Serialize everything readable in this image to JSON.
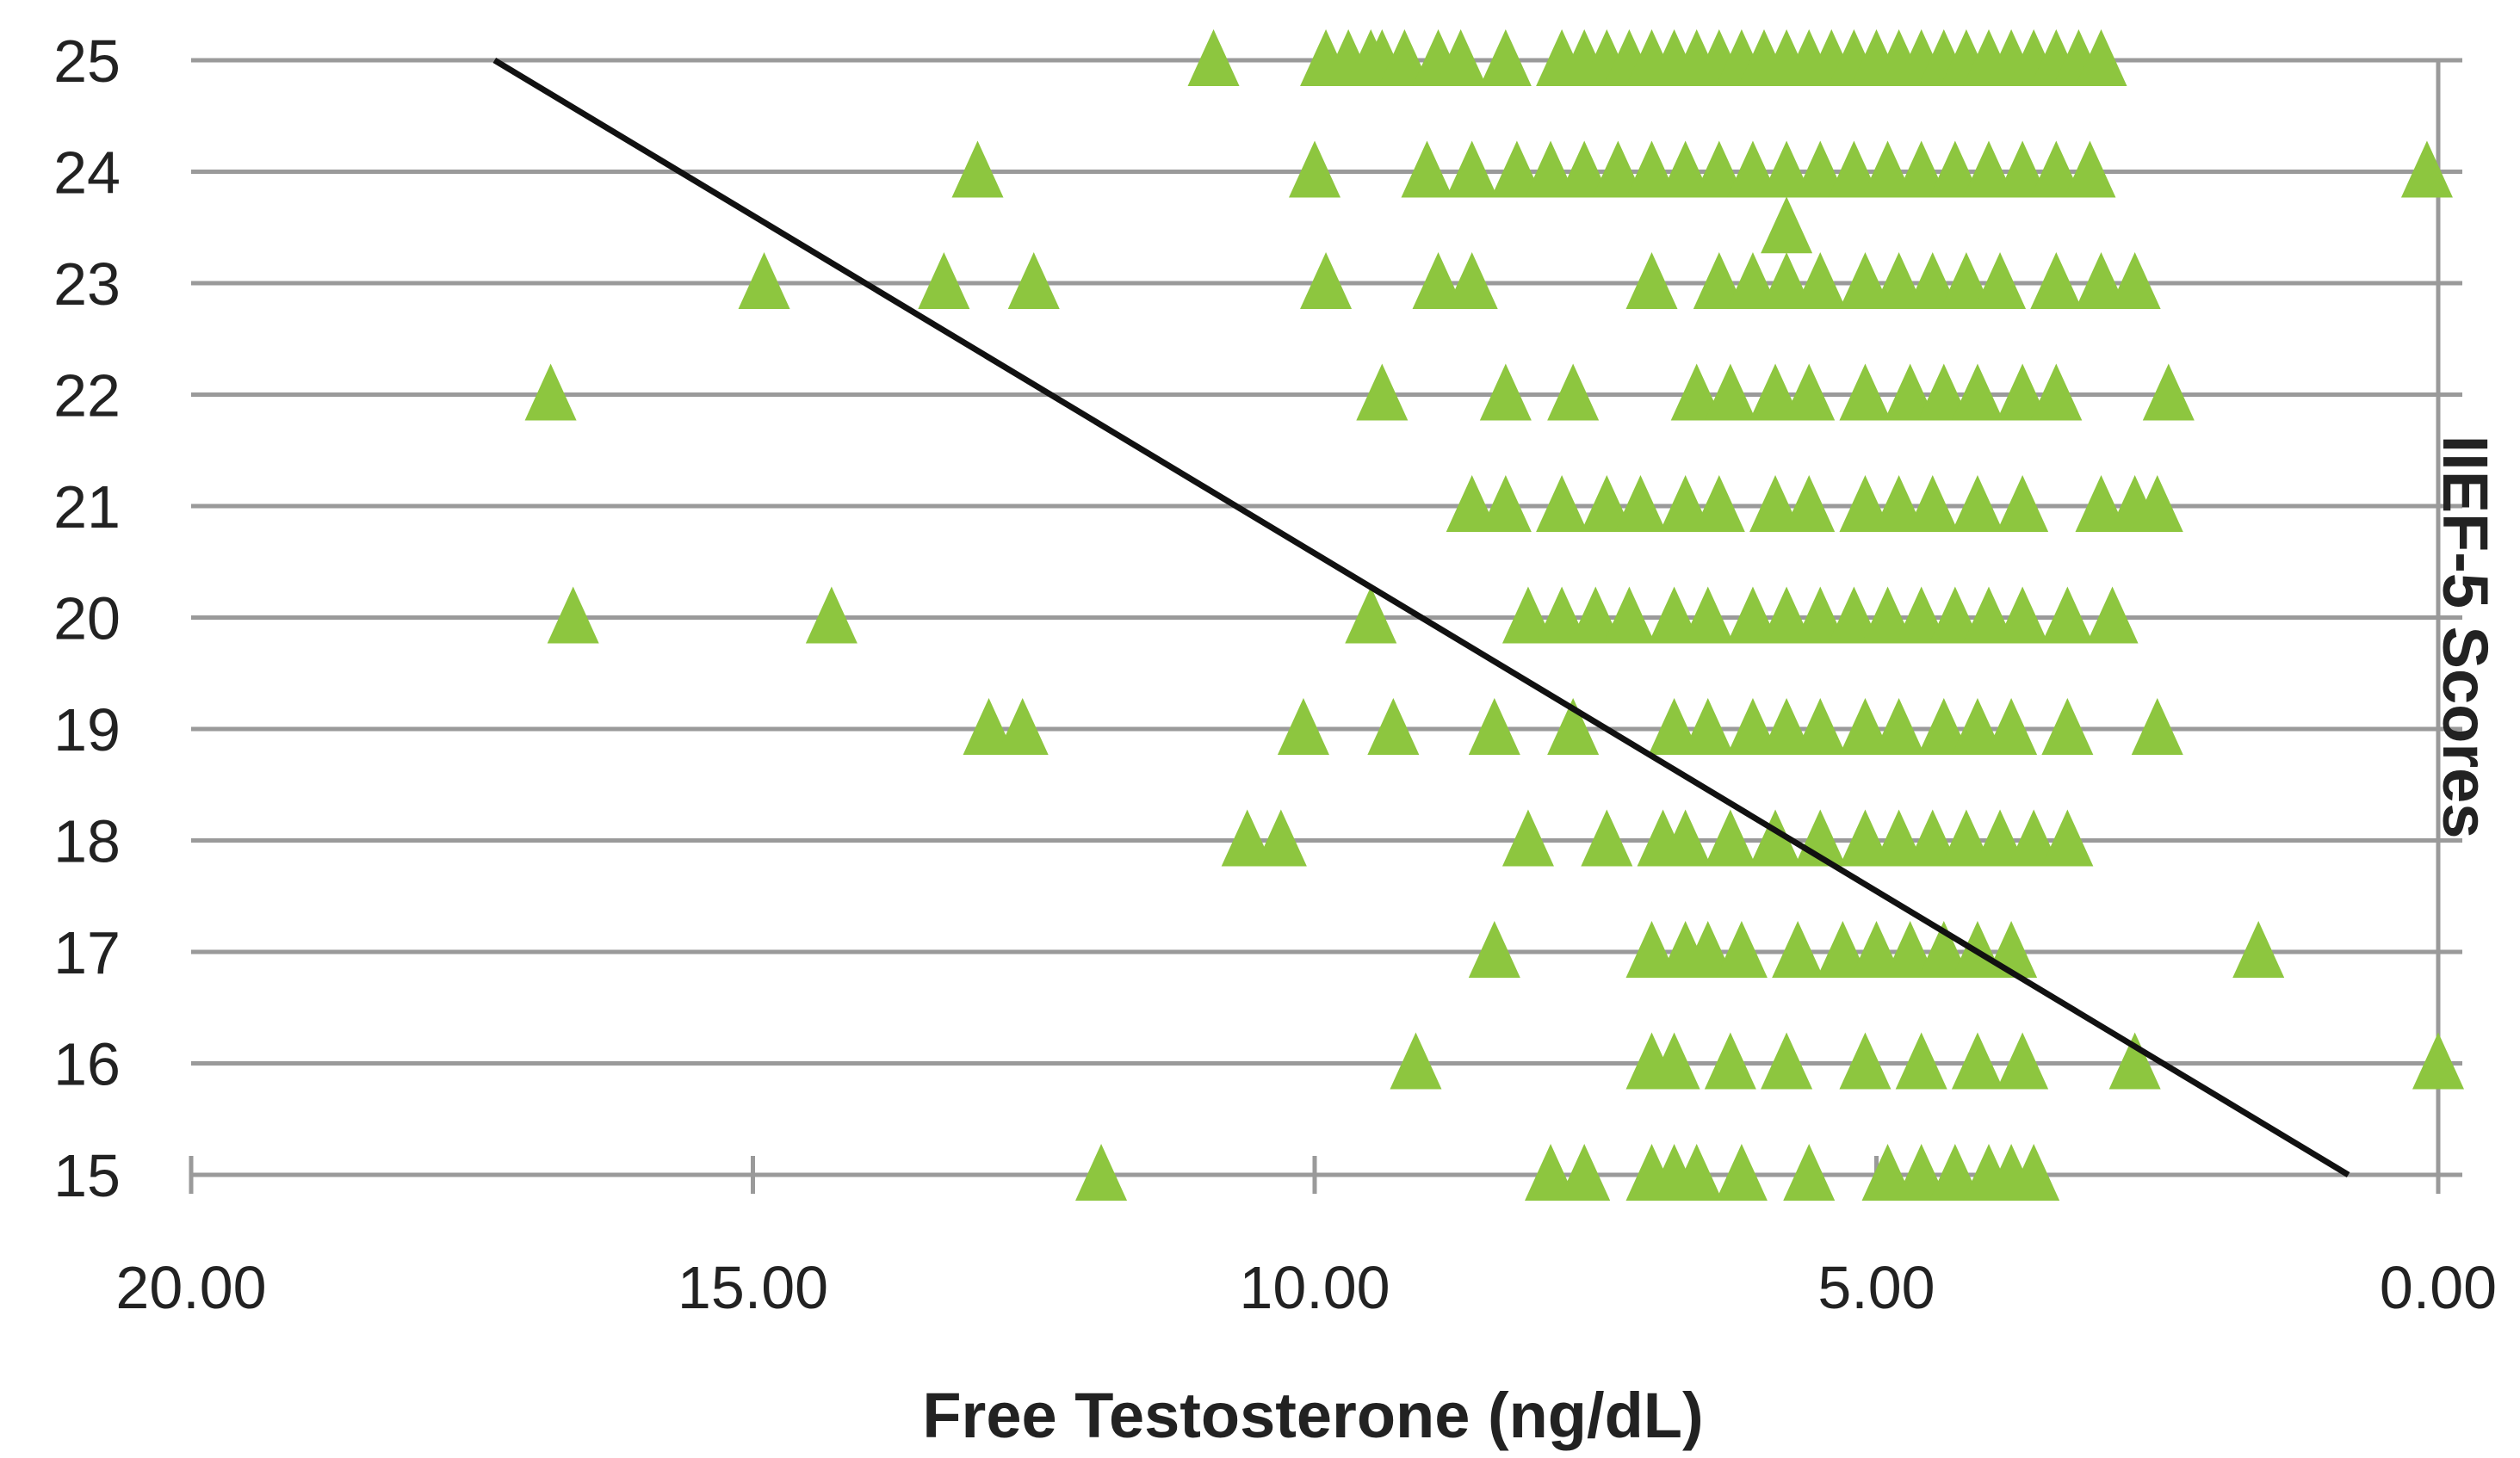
{
  "chart_data": {
    "type": "scatter",
    "title": "",
    "xlabel": "Free Testosterone (ng/dL)",
    "ylabel": "IIEF-5 Scores",
    "xlim": [
      20,
      0
    ],
    "x_reversed": true,
    "ylim": [
      15,
      25
    ],
    "x_ticks": [
      "20.00",
      "15.00",
      "10.00",
      "5.00",
      "0.00"
    ],
    "y_ticks": [
      "15",
      "16",
      "17",
      "18",
      "19",
      "20",
      "21",
      "22",
      "23",
      "24",
      "25"
    ],
    "grid": "horizontal",
    "legend": "none",
    "colors": {
      "marker": "#8DC63F",
      "trendline": "#111111",
      "grid": "#9a9a9a"
    },
    "series": [
      {
        "marker": "triangle",
        "points": [
          [
            10.9,
            25
          ],
          [
            9.9,
            25
          ],
          [
            9.7,
            25
          ],
          [
            9.5,
            25
          ],
          [
            9.4,
            25
          ],
          [
            9.2,
            25
          ],
          [
            8.9,
            25
          ],
          [
            8.7,
            25
          ],
          [
            8.3,
            25
          ],
          [
            7.8,
            25
          ],
          [
            7.6,
            25
          ],
          [
            7.4,
            25
          ],
          [
            7.2,
            25
          ],
          [
            7.0,
            25
          ],
          [
            6.8,
            25
          ],
          [
            6.6,
            25
          ],
          [
            6.4,
            25
          ],
          [
            6.2,
            25
          ],
          [
            6.0,
            25
          ],
          [
            5.8,
            25
          ],
          [
            5.6,
            25
          ],
          [
            5.4,
            25
          ],
          [
            5.2,
            25
          ],
          [
            5.0,
            25
          ],
          [
            4.8,
            25
          ],
          [
            4.6,
            25
          ],
          [
            4.4,
            25
          ],
          [
            4.2,
            25
          ],
          [
            4.0,
            25
          ],
          [
            3.8,
            25
          ],
          [
            3.6,
            25
          ],
          [
            3.4,
            25
          ],
          [
            3.2,
            25
          ],
          [
            3.0,
            25
          ],
          [
            13.0,
            24
          ],
          [
            10.0,
            24
          ],
          [
            9.0,
            24
          ],
          [
            8.6,
            24
          ],
          [
            8.2,
            24
          ],
          [
            7.9,
            24
          ],
          [
            7.6,
            24
          ],
          [
            7.3,
            24
          ],
          [
            7.0,
            24
          ],
          [
            6.7,
            24
          ],
          [
            6.4,
            24
          ],
          [
            6.1,
            24
          ],
          [
            5.8,
            24
          ],
          [
            5.5,
            24
          ],
          [
            5.2,
            24
          ],
          [
            4.9,
            24
          ],
          [
            4.6,
            24
          ],
          [
            4.3,
            24
          ],
          [
            4.0,
            24
          ],
          [
            3.7,
            24
          ],
          [
            3.4,
            24
          ],
          [
            3.1,
            24
          ],
          [
            0.1,
            24
          ],
          [
            5.8,
            23.5
          ],
          [
            14.9,
            23
          ],
          [
            13.3,
            23
          ],
          [
            12.5,
            23
          ],
          [
            9.9,
            23
          ],
          [
            8.9,
            23
          ],
          [
            8.6,
            23
          ],
          [
            7.0,
            23
          ],
          [
            6.4,
            23
          ],
          [
            6.1,
            23
          ],
          [
            5.8,
            23
          ],
          [
            5.5,
            23
          ],
          [
            5.1,
            23
          ],
          [
            4.8,
            23
          ],
          [
            4.5,
            23
          ],
          [
            4.2,
            23
          ],
          [
            3.9,
            23
          ],
          [
            3.4,
            23
          ],
          [
            3.0,
            23
          ],
          [
            2.7,
            23
          ],
          [
            16.8,
            22
          ],
          [
            9.4,
            22
          ],
          [
            8.3,
            22
          ],
          [
            7.7,
            22
          ],
          [
            6.6,
            22
          ],
          [
            6.3,
            22
          ],
          [
            5.9,
            22
          ],
          [
            5.6,
            22
          ],
          [
            5.1,
            22
          ],
          [
            4.7,
            22
          ],
          [
            4.4,
            22
          ],
          [
            4.1,
            22
          ],
          [
            3.7,
            22
          ],
          [
            3.4,
            22
          ],
          [
            2.4,
            22
          ],
          [
            8.6,
            21
          ],
          [
            8.3,
            21
          ],
          [
            7.8,
            21
          ],
          [
            7.4,
            21
          ],
          [
            7.1,
            21
          ],
          [
            6.7,
            21
          ],
          [
            6.4,
            21
          ],
          [
            5.9,
            21
          ],
          [
            5.6,
            21
          ],
          [
            5.1,
            21
          ],
          [
            4.8,
            21
          ],
          [
            4.5,
            21
          ],
          [
            4.1,
            21
          ],
          [
            3.7,
            21
          ],
          [
            3.0,
            21
          ],
          [
            2.7,
            21
          ],
          [
            2.5,
            21
          ],
          [
            16.6,
            20
          ],
          [
            14.3,
            20
          ],
          [
            9.5,
            20
          ],
          [
            8.1,
            20
          ],
          [
            7.8,
            20
          ],
          [
            7.5,
            20
          ],
          [
            7.2,
            20
          ],
          [
            6.8,
            20
          ],
          [
            6.5,
            20
          ],
          [
            6.1,
            20
          ],
          [
            5.8,
            20
          ],
          [
            5.5,
            20
          ],
          [
            5.2,
            20
          ],
          [
            4.9,
            20
          ],
          [
            4.6,
            20
          ],
          [
            4.3,
            20
          ],
          [
            4.0,
            20
          ],
          [
            3.7,
            20
          ],
          [
            3.3,
            20
          ],
          [
            2.9,
            20
          ],
          [
            12.9,
            19
          ],
          [
            12.6,
            19
          ],
          [
            10.1,
            19
          ],
          [
            9.3,
            19
          ],
          [
            8.4,
            19
          ],
          [
            7.7,
            19
          ],
          [
            6.8,
            19
          ],
          [
            6.5,
            19
          ],
          [
            6.1,
            19
          ],
          [
            5.8,
            19
          ],
          [
            5.5,
            19
          ],
          [
            5.1,
            19
          ],
          [
            4.8,
            19
          ],
          [
            4.4,
            19
          ],
          [
            4.1,
            19
          ],
          [
            3.8,
            19
          ],
          [
            3.3,
            19
          ],
          [
            2.5,
            19
          ],
          [
            10.6,
            18
          ],
          [
            10.3,
            18
          ],
          [
            8.1,
            18
          ],
          [
            7.4,
            18
          ],
          [
            6.9,
            18
          ],
          [
            6.7,
            18
          ],
          [
            6.3,
            18
          ],
          [
            5.9,
            18
          ],
          [
            5.5,
            18
          ],
          [
            5.1,
            18
          ],
          [
            4.8,
            18
          ],
          [
            4.5,
            18
          ],
          [
            4.2,
            18
          ],
          [
            3.9,
            18
          ],
          [
            3.6,
            18
          ],
          [
            3.3,
            18
          ],
          [
            8.4,
            17
          ],
          [
            7.0,
            17
          ],
          [
            6.7,
            17
          ],
          [
            6.5,
            17
          ],
          [
            6.2,
            17
          ],
          [
            5.7,
            17
          ],
          [
            5.3,
            17
          ],
          [
            5.0,
            17
          ],
          [
            4.7,
            17
          ],
          [
            4.4,
            17
          ],
          [
            4.1,
            17
          ],
          [
            3.8,
            17
          ],
          [
            1.6,
            17
          ],
          [
            9.1,
            16
          ],
          [
            7.0,
            16
          ],
          [
            6.8,
            16
          ],
          [
            6.3,
            16
          ],
          [
            5.8,
            16
          ],
          [
            5.1,
            16
          ],
          [
            4.6,
            16
          ],
          [
            4.1,
            16
          ],
          [
            3.7,
            16
          ],
          [
            2.7,
            16
          ],
          [
            0.0,
            16
          ],
          [
            11.9,
            15
          ],
          [
            7.9,
            15
          ],
          [
            7.6,
            15
          ],
          [
            7.0,
            15
          ],
          [
            6.8,
            15
          ],
          [
            6.6,
            15
          ],
          [
            6.2,
            15
          ],
          [
            5.6,
            15
          ],
          [
            4.9,
            15
          ],
          [
            4.6,
            15
          ],
          [
            4.3,
            15
          ],
          [
            4.0,
            15
          ],
          [
            3.8,
            15
          ],
          [
            3.6,
            15
          ]
        ]
      }
    ],
    "trendline": {
      "x": [
        17.3,
        0.8
      ],
      "y": [
        25,
        15
      ]
    }
  }
}
